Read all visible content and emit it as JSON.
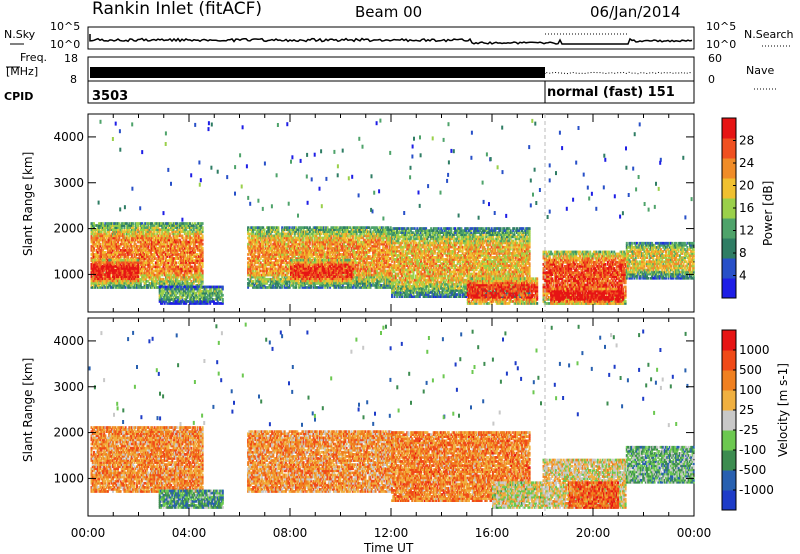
{
  "header": {
    "station": "Rankin Inlet (fitACF)",
    "beam": "Beam 00",
    "date": "06/Jan/2014"
  },
  "top_panels": {
    "nsky_label": "N.Sky",
    "nsky_ticks": [
      "10^5",
      "10^0"
    ],
    "nsearch_label": "N.Search",
    "nsearch_ticks": [
      "10^5",
      "10^0"
    ],
    "freq_label_1": "Freq.",
    "freq_label_2": "[MHz]",
    "freq_ticks": [
      "18",
      "8"
    ],
    "nave_label": "Nave",
    "nave_ticks": [
      "60",
      "0"
    ],
    "cpid_label": "CPID",
    "cpid_value_1": "3503",
    "cpid_value_2": "normal (fast) 151"
  },
  "colors": {
    "power_scale": [
      "#1e1ee6",
      "#2850c8",
      "#2f7d64",
      "#4ea36a",
      "#9ad04a",
      "#f0c030",
      "#f08c28",
      "#f05020",
      "#e61414"
    ],
    "velocity_scale": [
      "#1e3cc8",
      "#2860b0",
      "#3c8c50",
      "#6cc850",
      "#c8c8c8",
      "#f0b040",
      "#f08020",
      "#f04a18",
      "#e61414"
    ]
  },
  "chart_data": [
    {
      "type": "heatmap",
      "title": "Power",
      "ylabel": "Slant Range [km]",
      "xlabel": "Time UT",
      "x_ticks": [
        "00:00",
        "04:00",
        "08:00",
        "12:00",
        "16:00",
        "20:00",
        "00:00"
      ],
      "y_ticks": [
        "1000",
        "2000",
        "3000",
        "4000"
      ],
      "xlim_hours": [
        0,
        24
      ],
      "ylim_km": [
        180,
        4500
      ],
      "colorbar_label": "Power [dB]",
      "colorbar_ticks": [
        "28",
        "24",
        "20",
        "16",
        "12",
        "8",
        "4"
      ],
      "regions": [
        {
          "t0": 0.1,
          "t1": 4.5,
          "r0": 700,
          "r1": 2100,
          "level": 0.75
        },
        {
          "t0": 0.1,
          "t1": 2.0,
          "r0": 800,
          "r1": 1300,
          "level": 0.95
        },
        {
          "t0": 2.8,
          "t1": 5.3,
          "r0": 350,
          "r1": 750,
          "level": 0.4
        },
        {
          "t0": 6.3,
          "t1": 12.0,
          "r0": 700,
          "r1": 2050,
          "level": 0.7
        },
        {
          "t0": 8.0,
          "t1": 10.5,
          "r0": 800,
          "r1": 1300,
          "level": 0.9
        },
        {
          "t0": 12.0,
          "t1": 17.5,
          "r0": 500,
          "r1": 2000,
          "level": 0.65
        },
        {
          "t0": 15.0,
          "t1": 17.8,
          "r0": 350,
          "r1": 900,
          "level": 0.9
        },
        {
          "t0": 18.0,
          "t1": 21.3,
          "r0": 350,
          "r1": 1500,
          "level": 0.85
        },
        {
          "t0": 18.3,
          "t1": 21.2,
          "r0": 350,
          "r1": 700,
          "level": 1.0
        },
        {
          "t0": 21.3,
          "t1": 24.0,
          "r0": 900,
          "r1": 1700,
          "level": 0.6
        }
      ]
    },
    {
      "type": "heatmap",
      "title": "Velocity",
      "ylabel": "Slant Range [km]",
      "xlabel": "Time UT",
      "x_ticks": [
        "00:00",
        "04:00",
        "08:00",
        "12:00",
        "16:00",
        "20:00",
        "00:00"
      ],
      "y_ticks": [
        "1000",
        "2000",
        "3000",
        "4000"
      ],
      "xlim_hours": [
        0,
        24
      ],
      "ylim_km": [
        180,
        4500
      ],
      "colorbar_label": "Velocity [m s-1]",
      "colorbar_ticks": [
        "1000",
        "500",
        "100",
        "25",
        "-25",
        "-100",
        "-500",
        "-1000"
      ],
      "regions": [
        {
          "t0": 0.1,
          "t1": 4.5,
          "r0": 700,
          "r1": 2100,
          "level": 0.7
        },
        {
          "t0": 2.8,
          "t1": 5.3,
          "r0": 350,
          "r1": 750,
          "level": 0.3
        },
        {
          "t0": 6.3,
          "t1": 12.0,
          "r0": 700,
          "r1": 2050,
          "level": 0.68
        },
        {
          "t0": 12.0,
          "t1": 17.5,
          "r0": 500,
          "r1": 2000,
          "level": 0.72
        },
        {
          "t0": 16.0,
          "t1": 18.0,
          "r0": 350,
          "r1": 900,
          "level": 0.5
        },
        {
          "t0": 18.0,
          "t1": 21.3,
          "r0": 350,
          "r1": 1400,
          "level": 0.55
        },
        {
          "t0": 19.0,
          "t1": 21.0,
          "r0": 350,
          "r1": 900,
          "level": 0.8
        },
        {
          "t0": 21.3,
          "t1": 24.0,
          "r0": 900,
          "r1": 1700,
          "level": 0.35
        }
      ]
    }
  ]
}
